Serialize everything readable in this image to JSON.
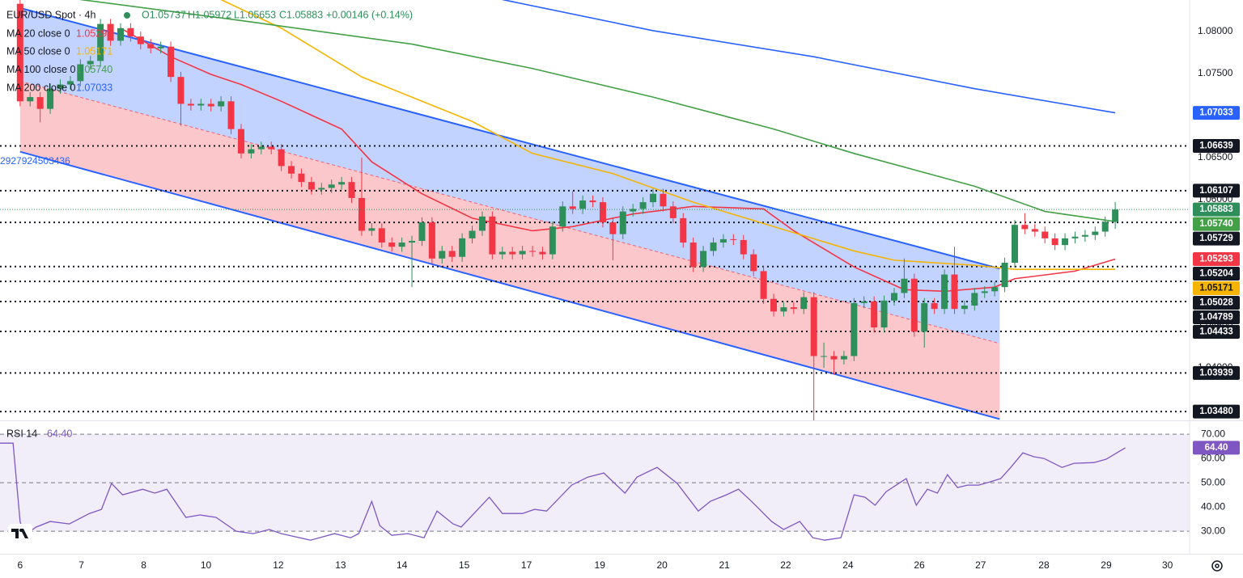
{
  "header": {
    "symbol": "EUR/USD Spot · 4h",
    "ohlc": [
      "O1.05737",
      "H1.05972",
      "L1.05653",
      "C1.05883",
      "+0.00146 (+0.14%)"
    ],
    "annotation": "2927924503436"
  },
  "chart_data": [
    {
      "type": "candlestick",
      "up_color": "#2f8f5b",
      "down_color": "#f23645",
      "grid": false,
      "xlim": [
        -2,
        116.4
      ],
      "ylim": [
        1.03375,
        1.08375
      ],
      "xticks": [
        {
          "value": 0,
          "label": "6"
        },
        {
          "value": 6.1,
          "label": "7"
        },
        {
          "value": 12.3,
          "label": "8"
        },
        {
          "value": 18.5,
          "label": "10"
        },
        {
          "value": 25.7,
          "label": "12"
        },
        {
          "value": 31.9,
          "label": "13"
        },
        {
          "value": 38,
          "label": "14"
        },
        {
          "value": 44.2,
          "label": "15"
        },
        {
          "value": 50.4,
          "label": "17"
        },
        {
          "value": 57.7,
          "label": "19"
        },
        {
          "value": 63.9,
          "label": "20"
        },
        {
          "value": 70.1,
          "label": "21"
        },
        {
          "value": 76.2,
          "label": "22"
        },
        {
          "value": 82.4,
          "label": "24"
        },
        {
          "value": 89.5,
          "label": "26"
        },
        {
          "value": 95.6,
          "label": "27"
        },
        {
          "value": 101.9,
          "label": "28"
        },
        {
          "value": 108.1,
          "label": "29"
        },
        {
          "value": 114.2,
          "label": "30"
        }
      ],
      "yticks": [
        {
          "value": 1.08,
          "label": "1.08000"
        },
        {
          "value": 1.075,
          "label": "1.07500"
        },
        {
          "value": 1.065,
          "label": "1.06500"
        },
        {
          "value": 1.06,
          "label": "1.06000"
        },
        {
          "value": 1.055,
          "label": "1.05500"
        },
        {
          "value": 1.045,
          "label": "1.04500"
        },
        {
          "value": 1.04,
          "label": "1.04000"
        }
      ],
      "open": [
        1.0833,
        1.0717,
        1.0722,
        1.0708,
        1.0732,
        1.0737,
        1.0741,
        1.0761,
        1.0765,
        1.0809,
        1.0789,
        1.0804,
        1.0794,
        1.0785,
        1.078,
        1.0782,
        1.0746,
        1.0714,
        1.0712,
        1.0714,
        1.0711,
        1.0717,
        1.0684,
        1.0655,
        1.066,
        1.0663,
        1.066,
        1.064,
        1.0631,
        1.0621,
        1.0612,
        1.0614,
        1.0618,
        1.0621,
        1.0602,
        1.0563,
        1.0566,
        1.0549,
        1.0544,
        1.0549,
        1.0551,
        1.0573,
        1.053,
        1.0539,
        1.0532,
        1.0554,
        1.0563,
        1.058,
        1.0535,
        1.0538,
        1.0535,
        1.0539,
        1.0538,
        1.0535,
        1.0568,
        1.0592,
        1.0589,
        1.0599,
        1.0597,
        1.0573,
        1.0559,
        1.0586,
        1.0589,
        1.0597,
        1.0607,
        1.0592,
        1.0578,
        1.0549,
        1.052,
        1.0539,
        1.0549,
        1.0553,
        1.0552,
        1.0535,
        1.0515,
        1.0482,
        1.0467,
        1.0472,
        1.047,
        1.0484,
        1.0414,
        1.0414,
        1.041,
        1.0414,
        1.0477,
        1.0479,
        1.0448,
        1.048,
        1.0489,
        1.0506,
        1.0443,
        1.0477,
        1.047,
        1.0511,
        1.047,
        1.0474,
        1.0489,
        1.0491,
        1.0496,
        1.0525,
        1.057,
        1.0565,
        1.0562,
        1.0554,
        1.0546,
        1.0554,
        1.0556,
        1.0558,
        1.0562,
        1.05737
      ],
      "high": [
        1.0839,
        1.0728,
        1.0728,
        1.0738,
        1.0743,
        1.0747,
        1.0767,
        1.0771,
        1.0815,
        1.0815,
        1.081,
        1.081,
        1.08,
        1.0791,
        1.0788,
        1.0788,
        1.0752,
        1.072,
        1.072,
        1.072,
        1.0723,
        1.0723,
        1.069,
        1.0666,
        1.0669,
        1.0669,
        1.0666,
        1.0646,
        1.0637,
        1.0627,
        1.062,
        1.0624,
        1.0627,
        1.0627,
        1.065,
        1.0572,
        1.0572,
        1.0555,
        1.0555,
        1.0557,
        1.0579,
        1.0579,
        1.0545,
        1.0545,
        1.056,
        1.0569,
        1.0586,
        1.0586,
        1.0544,
        1.0544,
        1.0545,
        1.0545,
        1.0544,
        1.0574,
        1.0598,
        1.061,
        1.0605,
        1.0605,
        1.0603,
        1.0579,
        1.0592,
        1.0595,
        1.0603,
        1.0613,
        1.0613,
        1.0598,
        1.0584,
        1.0555,
        1.0545,
        1.0555,
        1.0559,
        1.0559,
        1.0558,
        1.0541,
        1.0521,
        1.0488,
        1.0478,
        1.0478,
        1.049,
        1.049,
        1.043,
        1.042,
        1.042,
        1.0483,
        1.0485,
        1.0485,
        1.0486,
        1.0495,
        1.053,
        1.0512,
        1.0483,
        1.0483,
        1.0517,
        1.0544,
        1.048,
        1.0495,
        1.0497,
        1.0502,
        1.0531,
        1.0576,
        1.0584,
        1.0571,
        1.0568,
        1.056,
        1.056,
        1.0562,
        1.0564,
        1.0568,
        1.058,
        1.05972
      ],
      "low": [
        1.0711,
        1.0711,
        1.0692,
        1.0702,
        1.0726,
        1.0731,
        1.0735,
        1.0755,
        1.0759,
        1.0783,
        1.0783,
        1.0788,
        1.0779,
        1.0774,
        1.0774,
        1.074,
        1.0688,
        1.0706,
        1.0706,
        1.0705,
        1.0705,
        1.0678,
        1.0649,
        1.0649,
        1.0654,
        1.0654,
        1.0634,
        1.0625,
        1.0615,
        1.0606,
        1.0606,
        1.0608,
        1.0612,
        1.0596,
        1.0557,
        1.0557,
        1.0543,
        1.0538,
        1.0538,
        1.0496,
        1.0545,
        1.0524,
        1.0524,
        1.0526,
        1.0526,
        1.0548,
        1.0557,
        1.0529,
        1.0529,
        1.0529,
        1.0529,
        1.0532,
        1.0529,
        1.0529,
        1.0562,
        1.0583,
        1.0583,
        1.0591,
        1.0567,
        1.0528,
        1.0553,
        1.058,
        1.0583,
        1.0591,
        1.0586,
        1.0572,
        1.0543,
        1.0514,
        1.0514,
        1.0533,
        1.0543,
        1.0546,
        1.0529,
        1.0509,
        1.0476,
        1.0461,
        1.0461,
        1.0464,
        1.0464,
        1.0335,
        1.04,
        1.0392,
        1.0404,
        1.0408,
        1.0471,
        1.0442,
        1.0442,
        1.0474,
        1.0483,
        1.0437,
        1.0424,
        1.0464,
        1.0464,
        1.0464,
        1.0464,
        1.0468,
        1.0483,
        1.0485,
        1.049,
        1.0519,
        1.0559,
        1.0556,
        1.0548,
        1.054,
        1.054,
        1.0548,
        1.055,
        1.0552,
        1.0556,
        1.05653
      ],
      "close": [
        1.0717,
        1.0722,
        1.0708,
        1.0732,
        1.0737,
        1.0741,
        1.0761,
        1.0765,
        1.0809,
        1.0789,
        1.0804,
        1.0794,
        1.0785,
        1.078,
        1.0782,
        1.0746,
        1.0714,
        1.0712,
        1.0714,
        1.0711,
        1.0717,
        1.0684,
        1.0655,
        1.066,
        1.0663,
        1.066,
        1.064,
        1.0631,
        1.0621,
        1.0612,
        1.0614,
        1.0618,
        1.0621,
        1.0602,
        1.0563,
        1.0566,
        1.0549,
        1.0544,
        1.0549,
        1.0551,
        1.0573,
        1.053,
        1.0539,
        1.0532,
        1.0554,
        1.0563,
        1.058,
        1.0535,
        1.0538,
        1.0535,
        1.0539,
        1.0538,
        1.0535,
        1.0568,
        1.0592,
        1.0589,
        1.0599,
        1.0597,
        1.0573,
        1.0559,
        1.0586,
        1.0589,
        1.0597,
        1.0607,
        1.0592,
        1.0578,
        1.0549,
        1.052,
        1.0539,
        1.0549,
        1.0553,
        1.0552,
        1.0535,
        1.0515,
        1.0482,
        1.0467,
        1.0472,
        1.047,
        1.0484,
        1.0414,
        1.0414,
        1.041,
        1.0414,
        1.0477,
        1.0479,
        1.0448,
        1.048,
        1.0489,
        1.0506,
        1.0443,
        1.0477,
        1.047,
        1.0511,
        1.047,
        1.0474,
        1.0489,
        1.0491,
        1.0496,
        1.0525,
        1.057,
        1.0565,
        1.0562,
        1.0554,
        1.0546,
        1.0554,
        1.0556,
        1.0558,
        1.0562,
        1.05737,
        1.05883
      ],
      "series": [
        {
          "name": "MA 20 close 0",
          "color": "#f23645",
          "last_label": "1.05293",
          "x": [
            10,
            15,
            19,
            22,
            26,
            32,
            35,
            40,
            45,
            51,
            55,
            61,
            67,
            74,
            77,
            83,
            88,
            92,
            97,
            99,
            105,
            109
          ],
          "values": [
            1.0804,
            1.077,
            1.0749,
            1.0737,
            1.0717,
            1.0684,
            1.0645,
            1.0607,
            1.0578,
            1.0563,
            1.0568,
            1.0583,
            1.0592,
            1.0589,
            1.0563,
            1.052,
            1.0493,
            1.0491,
            1.0496,
            1.0506,
            1.0515,
            1.05293
          ]
        },
        {
          "name": "MA 50 close 0",
          "color": "#f5b400",
          "last_label": "1.05171",
          "x": [
            20,
            26,
            34,
            45,
            51,
            59,
            67,
            75,
            83,
            87,
            95,
            99,
            109
          ],
          "values": [
            1.0838,
            1.0804,
            1.0746,
            1.0693,
            1.0655,
            1.0631,
            1.0597,
            1.0568,
            1.0539,
            1.0528,
            1.0522,
            1.05171,
            1.05171
          ]
        },
        {
          "name": "MA 100 close 0",
          "color": "#43a047",
          "last_label": "1.05740",
          "x": [
            6,
            22,
            39,
            51,
            63,
            75,
            83,
            95,
            102,
            109
          ],
          "values": [
            1.0838,
            1.0813,
            1.0785,
            1.0756,
            1.0722,
            1.0684,
            1.0655,
            1.0616,
            1.0586,
            1.0574
          ]
        },
        {
          "name": "MA 200 close 0",
          "color": "#2962ff",
          "last_label": "1.07033",
          "x": [
            48,
            63,
            79,
            95,
            109
          ],
          "values": [
            1.0838,
            1.0801,
            1.077,
            1.0732,
            1.07033
          ]
        }
      ],
      "channel": {
        "x": [
          0,
          97.5
        ],
        "upper": [
          1.0828,
          1.0518
        ],
        "middle": [
          1.0741,
          1.0429
        ],
        "lower": [
          1.0657,
          1.0339
        ],
        "color": "#2962ff"
      },
      "levels": [
        {
          "value": 1.06639,
          "label": "1.06639"
        },
        {
          "value": 1.06107,
          "label": "1.06107"
        },
        {
          "value": 1.05729,
          "label": "1.05729"
        },
        {
          "value": 1.05204,
          "label": "1.05204"
        },
        {
          "value": 1.05028,
          "label": "1.05028"
        },
        {
          "value": 1.04789,
          "label": "1.04789"
        },
        {
          "value": 1.04433,
          "label": "1.04433"
        },
        {
          "value": 1.03939,
          "label": "1.03939"
        },
        {
          "value": 1.0348,
          "label": "1.03480"
        }
      ],
      "last_price": {
        "value": 1.05883,
        "label": "1.05883"
      }
    },
    {
      "type": "line",
      "name": "RSI 14",
      "color": "#7e57c2",
      "last_label": "64.40",
      "xlim": [
        -2,
        116.4
      ],
      "ylim": [
        20.7,
        75.7
      ],
      "yticks": [
        {
          "value": 70,
          "label": "70.00"
        },
        {
          "value": 60,
          "label": "60.00"
        },
        {
          "value": 50,
          "label": "50.00"
        },
        {
          "value": 40,
          "label": "40.00"
        },
        {
          "value": 30,
          "label": "30.00"
        }
      ],
      "levels": [
        70,
        50,
        30
      ],
      "x": [
        -2,
        -0.7,
        0,
        0.4,
        1.6,
        3,
        4.9,
        6.9,
        8.1,
        9.1,
        10.2,
        12.2,
        13.4,
        14.6,
        16.5,
        17.9,
        19.5,
        21.5,
        23.2,
        24.8,
        26,
        28.9,
        31.3,
        32.9,
        33.7,
        35,
        35.8,
        37,
        38.6,
        40.2,
        41.5,
        43.1,
        43.9,
        46.7,
        48,
        50,
        51.2,
        52.4,
        54.9,
        56.5,
        58.1,
        60.2,
        61.4,
        63.4,
        65.4,
        67.5,
        68.7,
        70.3,
        71.5,
        72.8,
        74.8,
        76,
        77.6,
        78.9,
        80.1,
        81.7,
        83,
        84.1,
        85.1,
        86.2,
        87.2,
        88.2,
        89.2,
        90.3,
        91.3,
        92.3,
        93.3,
        94.3,
        95.4,
        96.5,
        97.6,
        98.6,
        99.8,
        100.9,
        101.9,
        103.7,
        104.9,
        106.9,
        108.1,
        110
      ],
      "values": [
        66.3,
        66.3,
        34,
        28.3,
        31.7,
        34,
        33,
        37.3,
        39,
        49.7,
        45,
        47.3,
        45.7,
        47.3,
        35.7,
        36.7,
        35.7,
        30,
        29,
        30.7,
        29,
        26.3,
        29,
        27.3,
        29,
        42.3,
        32.3,
        28.3,
        29,
        27.3,
        38.3,
        33,
        31.7,
        44,
        37.3,
        37.3,
        39,
        38.3,
        49,
        52.3,
        54,
        45.7,
        52.3,
        56.3,
        49.7,
        38.3,
        42.3,
        45,
        47.3,
        42.3,
        34,
        30.7,
        34,
        27.3,
        26.3,
        27.3,
        45,
        44,
        40.7,
        46.3,
        49,
        51.7,
        40.7,
        47.3,
        45.7,
        53.3,
        48,
        49,
        49,
        50.3,
        51.7,
        56.3,
        62.3,
        60.7,
        60,
        56.3,
        58,
        58.3,
        59.7,
        64.4
      ]
    }
  ]
}
